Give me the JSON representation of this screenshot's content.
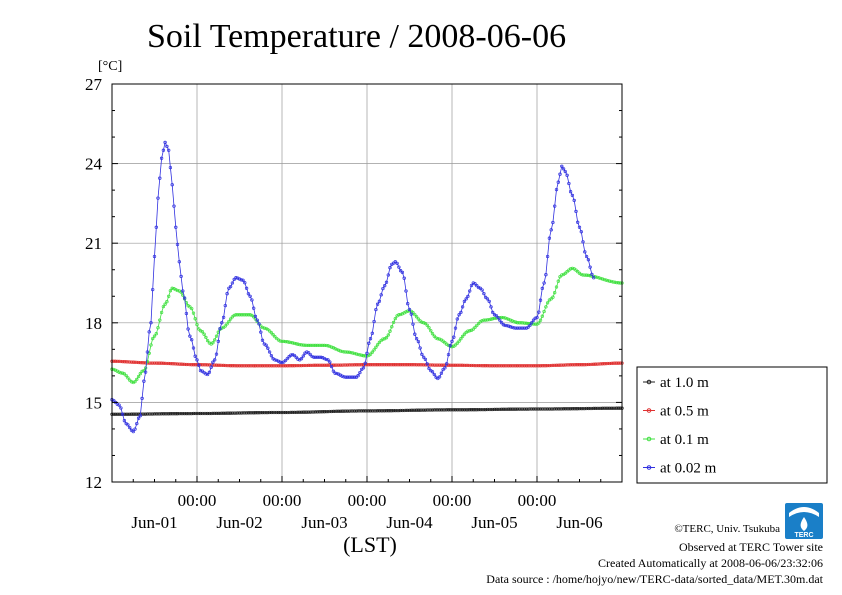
{
  "chart_data": {
    "type": "line",
    "title": "Soil Temperature / 2008-06-06",
    "y_unit_label": "[°C]",
    "xlabel": "(LST)",
    "ylim": [
      12,
      27
    ],
    "y_ticks": [
      "27",
      "24",
      "21",
      "18",
      "15",
      "12"
    ],
    "x_range_hours": [
      0,
      144
    ],
    "x_ticks": [
      {
        "hour": 0,
        "time": "",
        "date": ""
      },
      {
        "hour": 24,
        "time": "00:00",
        "date": "Jun-01"
      },
      {
        "hour": 48,
        "time": "00:00",
        "date": "Jun-02"
      },
      {
        "hour": 72,
        "time": "00:00",
        "date": "Jun-03"
      },
      {
        "hour": 96,
        "time": "00:00",
        "date": "Jun-04"
      },
      {
        "hour": 120,
        "time": "00:00",
        "date": "Jun-05"
      },
      {
        "hour": 144,
        "time": "",
        "date": "Jun-06"
      }
    ],
    "grid": true,
    "legend_position": "right",
    "series": [
      {
        "name": "at 1.0 m",
        "color": "#222222",
        "points": [
          [
            0,
            14.55
          ],
          [
            24,
            14.58
          ],
          [
            48,
            14.62
          ],
          [
            72,
            14.68
          ],
          [
            96,
            14.72
          ],
          [
            120,
            14.75
          ],
          [
            144,
            14.78
          ]
        ]
      },
      {
        "name": "at 0.5 m",
        "color": "#e03030",
        "points": [
          [
            0,
            16.55
          ],
          [
            12,
            16.48
          ],
          [
            24,
            16.42
          ],
          [
            36,
            16.38
          ],
          [
            48,
            16.38
          ],
          [
            60,
            16.4
          ],
          [
            72,
            16.42
          ],
          [
            84,
            16.42
          ],
          [
            96,
            16.4
          ],
          [
            108,
            16.38
          ],
          [
            120,
            16.38
          ],
          [
            132,
            16.42
          ],
          [
            144,
            16.48
          ]
        ]
      },
      {
        "name": "at 0.1 m",
        "color": "#40e040",
        "points": [
          [
            0,
            16.25
          ],
          [
            3,
            16.1
          ],
          [
            6,
            15.75
          ],
          [
            9,
            16.2
          ],
          [
            12,
            17.5
          ],
          [
            15,
            18.7
          ],
          [
            17,
            19.3
          ],
          [
            19,
            19.2
          ],
          [
            22,
            18.6
          ],
          [
            25,
            17.7
          ],
          [
            28,
            17.2
          ],
          [
            31,
            17.8
          ],
          [
            35,
            18.3
          ],
          [
            39,
            18.3
          ],
          [
            43,
            17.8
          ],
          [
            48,
            17.3
          ],
          [
            55,
            17.15
          ],
          [
            60,
            17.15
          ],
          [
            66,
            16.9
          ],
          [
            72,
            16.75
          ],
          [
            77,
            17.4
          ],
          [
            81,
            18.3
          ],
          [
            84,
            18.45
          ],
          [
            88,
            18.0
          ],
          [
            92,
            17.4
          ],
          [
            96,
            17.1
          ],
          [
            101,
            17.7
          ],
          [
            105,
            18.1
          ],
          [
            110,
            18.2
          ],
          [
            115,
            18.0
          ],
          [
            120,
            17.95
          ],
          [
            124,
            18.9
          ],
          [
            127,
            19.8
          ],
          [
            130,
            20.05
          ],
          [
            133,
            19.8
          ],
          [
            144,
            19.5
          ]
        ]
      },
      {
        "name": "at 0.02 m",
        "color": "#3030e0",
        "points": [
          [
            0,
            15.1
          ],
          [
            2,
            14.9
          ],
          [
            4,
            14.2
          ],
          [
            6,
            13.9
          ],
          [
            8,
            14.5
          ],
          [
            9,
            15.8
          ],
          [
            11,
            18.0
          ],
          [
            12,
            20.5
          ],
          [
            13,
            22.7
          ],
          [
            14,
            24.2
          ],
          [
            15,
            24.8
          ],
          [
            16,
            24.5
          ],
          [
            17,
            23.2
          ],
          [
            18,
            21.6
          ],
          [
            19,
            20.3
          ],
          [
            20,
            19.2
          ],
          [
            22,
            17.5
          ],
          [
            24,
            16.6
          ],
          [
            25,
            16.2
          ],
          [
            27,
            16.05
          ],
          [
            29,
            16.6
          ],
          [
            31,
            18.0
          ],
          [
            33,
            19.3
          ],
          [
            35,
            19.7
          ],
          [
            37,
            19.6
          ],
          [
            39,
            19.0
          ],
          [
            41,
            18.1
          ],
          [
            43,
            17.2
          ],
          [
            46,
            16.6
          ],
          [
            48,
            16.5
          ],
          [
            51,
            16.8
          ],
          [
            53,
            16.6
          ],
          [
            55,
            16.9
          ],
          [
            57,
            16.7
          ],
          [
            59,
            16.7
          ],
          [
            61,
            16.6
          ],
          [
            63,
            16.1
          ],
          [
            66,
            15.95
          ],
          [
            69,
            15.95
          ],
          [
            71,
            16.3
          ],
          [
            73,
            17.4
          ],
          [
            75,
            18.7
          ],
          [
            77,
            19.4
          ],
          [
            79,
            20.2
          ],
          [
            80,
            20.3
          ],
          [
            82,
            19.9
          ],
          [
            84,
            18.5
          ],
          [
            86,
            17.4
          ],
          [
            88,
            16.7
          ],
          [
            90,
            16.2
          ],
          [
            92,
            15.9
          ],
          [
            94,
            16.3
          ],
          [
            96,
            17.3
          ],
          [
            98,
            18.3
          ],
          [
            100,
            18.9
          ],
          [
            102,
            19.5
          ],
          [
            104,
            19.3
          ],
          [
            106,
            18.9
          ],
          [
            108,
            18.3
          ],
          [
            111,
            17.9
          ],
          [
            114,
            17.8
          ],
          [
            117,
            17.8
          ],
          [
            120,
            18.2
          ],
          [
            122,
            19.5
          ],
          [
            124,
            21.5
          ],
          [
            126,
            23.3
          ],
          [
            127,
            23.9
          ],
          [
            128,
            23.7
          ],
          [
            130,
            22.8
          ],
          [
            132,
            21.6
          ],
          [
            134,
            20.5
          ],
          [
            136,
            19.7
          ]
        ]
      }
    ]
  },
  "credits": {
    "copyright": "©TERC, Univ. Tsukuba",
    "site": "Observed at TERC Tower site",
    "created": "Created Automatically at 2008-06-06/23:32:06",
    "source": "Data source : /home/hojyo/new/TERC-data/sorted_data/MET.30m.dat",
    "logo_text": "TERC"
  }
}
